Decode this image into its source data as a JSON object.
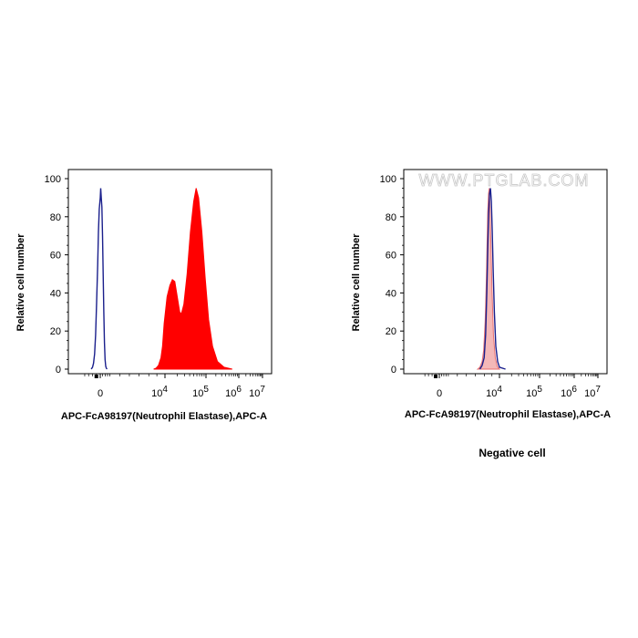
{
  "chart_data": [
    {
      "type": "area",
      "ylabel": "Relative cell number",
      "xlabel": "APC-FcA98197(Neutrophil Elastase),APC-A",
      "yticks": [
        "0",
        "20",
        "40",
        "60",
        "80",
        "100"
      ],
      "xticks": [
        {
          "base": "0",
          "exp": ""
        },
        {
          "base": "10",
          "exp": "4"
        },
        {
          "base": "10",
          "exp": "5"
        },
        {
          "base": "10",
          "exp": "6"
        },
        {
          "base": "10",
          "exp": "7"
        }
      ],
      "ylim": [
        0,
        100
      ],
      "x_scale": "biexponential",
      "series": [
        {
          "style": "outline",
          "color": "#1a1f8c",
          "points": [
            [
              -0.35,
              0
            ],
            [
              -0.3,
              1
            ],
            [
              -0.26,
              3
            ],
            [
              -0.22,
              8
            ],
            [
              -0.18,
              18
            ],
            [
              -0.14,
              35
            ],
            [
              -0.1,
              55
            ],
            [
              -0.07,
              72
            ],
            [
              -0.04,
              84
            ],
            [
              0.0,
              90
            ],
            [
              0.03,
              95
            ],
            [
              0.06,
              90
            ],
            [
              0.1,
              85
            ],
            [
              0.14,
              70
            ],
            [
              0.18,
              50
            ],
            [
              0.22,
              30
            ],
            [
              0.26,
              14
            ],
            [
              0.3,
              5
            ],
            [
              0.34,
              1.5
            ],
            [
              0.38,
              0.5
            ],
            [
              0.42,
              0
            ]
          ]
        },
        {
          "style": "filled",
          "color": "#ff0000",
          "points": [
            [
              3.3,
              0
            ],
            [
              3.45,
              0.5
            ],
            [
              3.6,
              2
            ],
            [
              3.75,
              6
            ],
            [
              3.85,
              12
            ],
            [
              3.95,
              24
            ],
            [
              4.05,
              38
            ],
            [
              4.12,
              44
            ],
            [
              4.18,
              47
            ],
            [
              4.24,
              46
            ],
            [
              4.3,
              38
            ],
            [
              4.36,
              30
            ],
            [
              4.4,
              29
            ],
            [
              4.46,
              34
            ],
            [
              4.54,
              50
            ],
            [
              4.62,
              72
            ],
            [
              4.7,
              88
            ],
            [
              4.76,
              95
            ],
            [
              4.82,
              90
            ],
            [
              4.9,
              72
            ],
            [
              4.98,
              48
            ],
            [
              5.08,
              26
            ],
            [
              5.2,
              12
            ],
            [
              5.35,
              4
            ],
            [
              5.55,
              1
            ],
            [
              5.8,
              0
            ]
          ]
        }
      ]
    },
    {
      "type": "area",
      "ylabel": "Relative cell number",
      "xlabel": "APC-FcA98197(Neutrophil Elastase),APC-A",
      "yticks": [
        "0",
        "20",
        "40",
        "60",
        "80",
        "100"
      ],
      "xticks": [
        {
          "base": "0",
          "exp": ""
        },
        {
          "base": "10",
          "exp": "4"
        },
        {
          "base": "10",
          "exp": "5"
        },
        {
          "base": "10",
          "exp": "6"
        },
        {
          "base": "10",
          "exp": "7"
        }
      ],
      "ylim": [
        0,
        100
      ],
      "x_scale": "biexponential",
      "watermark": "WWW.PTGLAB.COM",
      "caption": "Negative cell",
      "series": [
        {
          "style": "filled",
          "color": "#f4b8b8",
          "stroke": "#e87070",
          "points": [
            [
              2.55,
              0
            ],
            [
              2.7,
              1
            ],
            [
              2.85,
              4
            ],
            [
              2.95,
              10
            ],
            [
              3.05,
              25
            ],
            [
              3.12,
              45
            ],
            [
              3.18,
              68
            ],
            [
              3.22,
              82
            ],
            [
              3.27,
              92
            ],
            [
              3.32,
              95
            ],
            [
              3.36,
              88
            ],
            [
              3.42,
              70
            ],
            [
              3.5,
              42
            ],
            [
              3.6,
              18
            ],
            [
              3.72,
              6
            ],
            [
              3.85,
              1.5
            ],
            [
              4.0,
              0
            ]
          ]
        },
        {
          "style": "outline",
          "color": "#1a1f8c",
          "points": [
            [
              2.7,
              0
            ],
            [
              2.85,
              2
            ],
            [
              2.98,
              6
            ],
            [
              3.08,
              18
            ],
            [
              3.16,
              40
            ],
            [
              3.22,
              62
            ],
            [
              3.28,
              82
            ],
            [
              3.34,
              92
            ],
            [
              3.4,
              95
            ],
            [
              3.46,
              88
            ],
            [
              3.52,
              72
            ],
            [
              3.58,
              52
            ],
            [
              3.66,
              30
            ],
            [
              3.76,
              12
            ],
            [
              3.88,
              4
            ],
            [
              4.0,
              1
            ],
            [
              4.15,
              0
            ]
          ]
        }
      ]
    }
  ]
}
